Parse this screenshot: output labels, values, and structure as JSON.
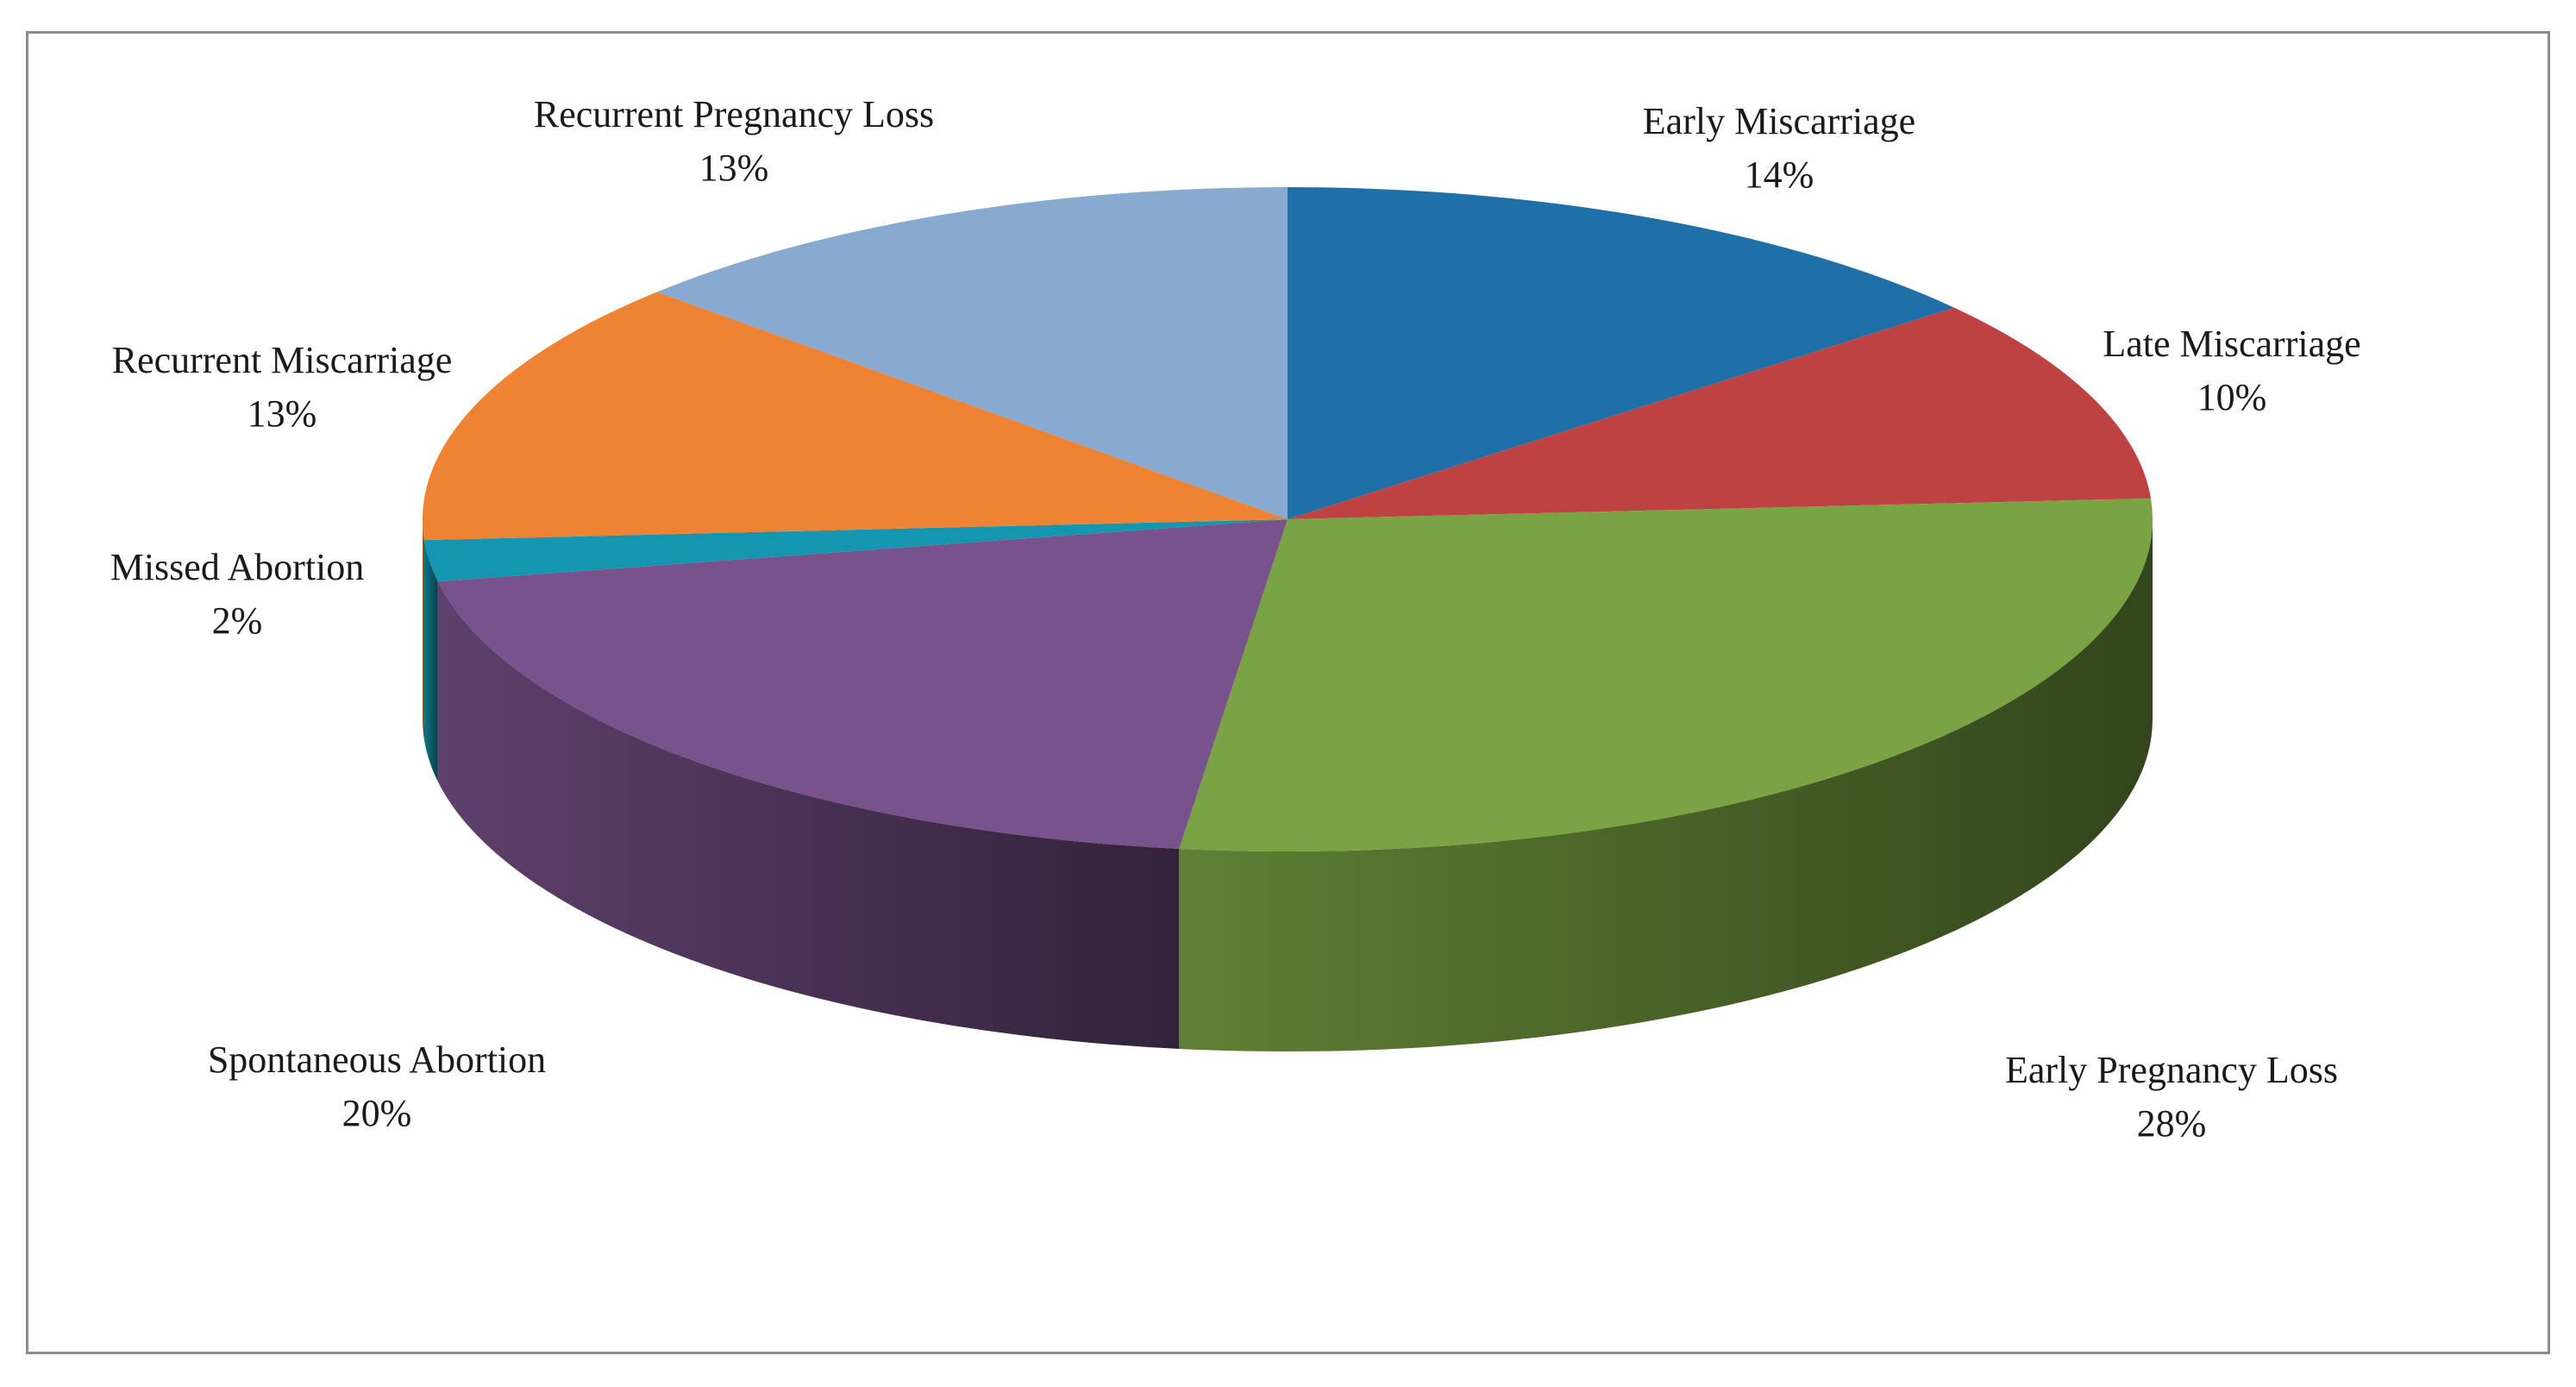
{
  "chart_data": {
    "type": "pie",
    "style": "3d",
    "legend": "none",
    "slices": [
      {
        "label": "Early Miscarriage",
        "percent_label": "14%",
        "value": 14,
        "color": "#1f6fa8"
      },
      {
        "label": "Late Miscarriage",
        "percent_label": "10%",
        "value": 10,
        "color": "#be4242"
      },
      {
        "label": "Early Pregnancy Loss",
        "percent_label": "28%",
        "value": 28,
        "color": "#7aa443"
      },
      {
        "label": "Spontaneous Abortion",
        "percent_label": "20%",
        "value": 20,
        "color": "#78528a"
      },
      {
        "label": "Missed Abortion",
        "percent_label": "2%",
        "value": 2,
        "color": "#1596b0"
      },
      {
        "label": "Recurrent Miscarriage",
        "percent_label": "13%",
        "value": 13,
        "color": "#ee8333"
      },
      {
        "label": "Recurrent Pregnancy Loss",
        "percent_label": "13%",
        "value": 13,
        "color": "#88a9d0"
      }
    ]
  }
}
